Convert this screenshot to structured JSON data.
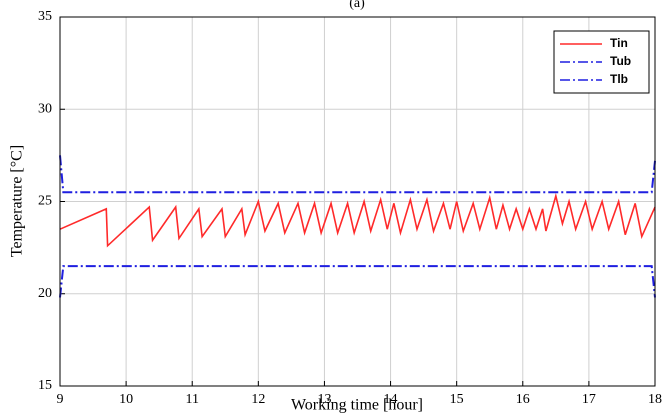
{
  "chart_data": {
    "type": "line",
    "title": "(a)",
    "x_label": "Working time [hour]",
    "y_label": "Temperature [°C]",
    "xlim": [
      9,
      18
    ],
    "ylim": [
      15,
      35
    ],
    "xticks": [
      9,
      10,
      11,
      12,
      13,
      14,
      15,
      16,
      17,
      18
    ],
    "yticks": [
      15,
      20,
      25,
      30,
      35
    ],
    "grid": true,
    "legend": "upper right",
    "series": [
      {
        "name": "Tin",
        "color": "#ff2a2a",
        "style": "solid",
        "x": [
          9,
          9.7,
          9.72,
          10.35,
          10.4,
          10.75,
          10.8,
          11.1,
          11.15,
          11.45,
          11.5,
          11.75,
          11.8,
          12.0,
          12.1,
          12.3,
          12.4,
          12.6,
          12.7,
          12.85,
          12.95,
          13.1,
          13.2,
          13.35,
          13.45,
          13.6,
          13.7,
          13.85,
          13.95,
          14.05,
          14.15,
          14.3,
          14.4,
          14.55,
          14.65,
          14.8,
          14.9,
          15.0,
          15.1,
          15.25,
          15.35,
          15.5,
          15.6,
          15.7,
          15.8,
          15.9,
          16.0,
          16.1,
          16.2,
          16.3,
          16.35,
          16.5,
          16.6,
          16.7,
          16.8,
          16.95,
          17.05,
          17.2,
          17.3,
          17.45,
          17.55,
          17.7,
          17.8,
          18.0
        ],
        "values": [
          23.5,
          24.6,
          22.6,
          24.7,
          22.9,
          24.7,
          23.0,
          24.6,
          23.1,
          24.6,
          23.1,
          24.6,
          23.2,
          25.0,
          23.4,
          24.9,
          23.3,
          24.9,
          23.3,
          24.9,
          23.3,
          24.9,
          23.3,
          24.9,
          23.3,
          25.0,
          23.4,
          25.1,
          23.5,
          24.9,
          23.3,
          25.1,
          23.5,
          25.1,
          23.4,
          24.9,
          23.5,
          25.0,
          23.4,
          24.9,
          23.5,
          25.2,
          23.5,
          24.8,
          23.5,
          24.6,
          23.5,
          24.6,
          23.5,
          24.6,
          23.4,
          25.3,
          23.8,
          25.0,
          23.5,
          25.0,
          23.5,
          25.0,
          23.5,
          25.0,
          23.2,
          24.9,
          23.1,
          24.7
        ]
      },
      {
        "name": "Tub",
        "color": "#1f1fe0",
        "style": "dashdot",
        "x": [
          9,
          9.05,
          17.95,
          18
        ],
        "values": [
          27.5,
          25.5,
          25.5,
          27.2
        ]
      },
      {
        "name": "Tlb",
        "color": "#1f1fe0",
        "style": "dashdot",
        "x": [
          9,
          9.05,
          17.95,
          18
        ],
        "values": [
          19.8,
          21.5,
          21.5,
          19.8
        ]
      }
    ]
  }
}
